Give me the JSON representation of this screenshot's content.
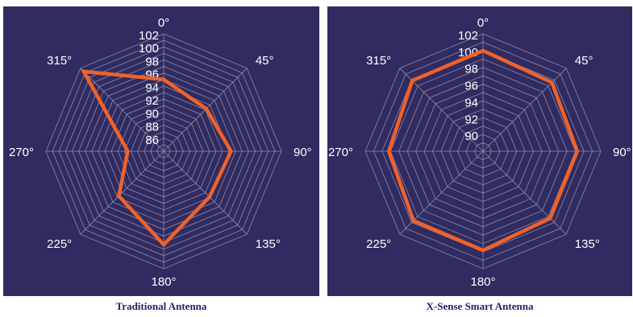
{
  "colors": {
    "background": "#302b60",
    "grid": "#8e8aa8",
    "text": "#ffffff",
    "series": "#f0622a",
    "caption": "#24216a"
  },
  "chart_data": [
    {
      "type": "radar",
      "title": "Traditional Antenna",
      "angle_labels": [
        "0°",
        "45°",
        "90°",
        "135°",
        "180°",
        "225°",
        "270°",
        "315°"
      ],
      "radial_ticks": [
        86,
        88,
        90,
        92,
        94,
        96,
        98,
        100,
        102
      ],
      "rlim": [
        84,
        102
      ],
      "values": [
        95.0,
        93.2,
        94.3,
        93.9,
        98.3,
        93.7,
        89.5,
        101.3
      ]
    },
    {
      "type": "radar",
      "title": "X-Sense Smart Antenna",
      "angle_labels": [
        "0°",
        "45°",
        "90°",
        "135°",
        "180°",
        "225°",
        "270°",
        "315°"
      ],
      "radial_ticks": [
        90,
        92,
        94,
        96,
        98,
        100,
        102
      ],
      "rlim": [
        88,
        102
      ],
      "values": [
        100.0,
        99.6,
        99.2,
        99.3,
        99.8,
        99.7,
        99.2,
        99.9
      ]
    }
  ]
}
